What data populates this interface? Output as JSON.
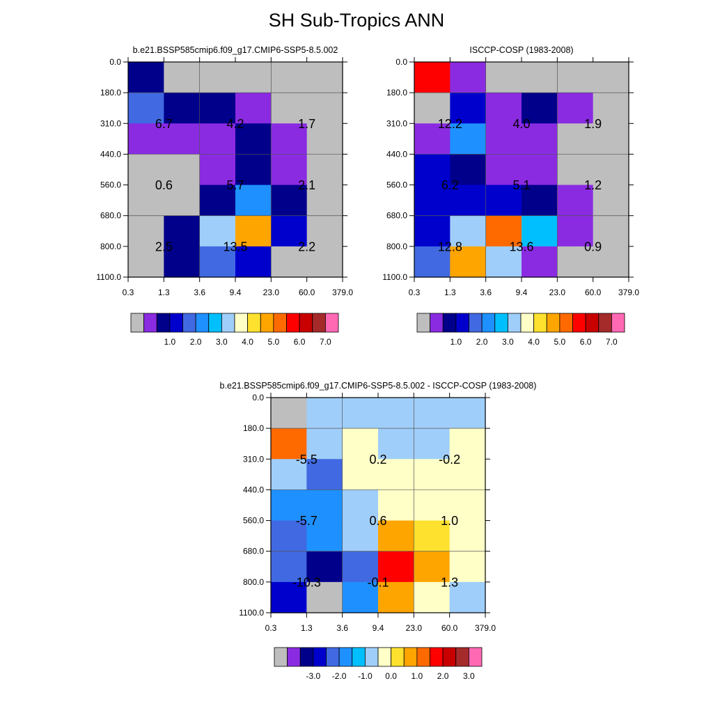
{
  "title": "SH Sub-Tropics ANN",
  "colors": {
    "gray": "#bebebe",
    "purple": "#8a2be2",
    "navy": "#00008b",
    "medblue": "#0000cd",
    "royal": "#4169e1",
    "dodger": "#1e90ff",
    "deepsky": "#00bfff",
    "lightsky": "#a0cefa",
    "cream": "#ffffc8",
    "gold": "#fde12e",
    "orange": "#ffa500",
    "darkorange": "#ff6a00",
    "red": "#ff0000",
    "crimson": "#c80000",
    "brown": "#a52a2a",
    "pink": "#ff69b4"
  },
  "chart_data": [
    {
      "type": "heatmap",
      "title": "b.e21.BSSP585cmip6.f09_g17.CMIP6-SSP5-8.5.002",
      "x_ticks": [
        "0.3",
        "1.3",
        "3.6",
        "9.4",
        "23.0",
        "60.0",
        "379.0"
      ],
      "y_ticks": [
        "0.0",
        "180.0",
        "310.0",
        "440.0",
        "560.0",
        "680.0",
        "800.0",
        "1100.0"
      ],
      "cells": [
        [
          "navy",
          "gray",
          "gray",
          "gray",
          "gray",
          "gray"
        ],
        [
          "royal",
          "navy",
          "navy",
          "purple",
          "gray",
          "gray"
        ],
        [
          "purple",
          "purple",
          "purple",
          "navy",
          "purple",
          "gray"
        ],
        [
          "gray",
          "gray",
          "purple",
          "navy",
          "purple",
          "gray"
        ],
        [
          "gray",
          "gray",
          "navy",
          "dodger",
          "navy",
          "gray"
        ],
        [
          "gray",
          "navy",
          "lightsky",
          "orange",
          "medblue",
          "gray"
        ],
        [
          "gray",
          "navy",
          "royal",
          "medblue",
          "gray",
          "gray"
        ]
      ],
      "annotations": [
        {
          "row": 1,
          "col": 0,
          "text": "6.7"
        },
        {
          "row": 1,
          "col": 2,
          "text": "4.2"
        },
        {
          "row": 1,
          "col": 4,
          "text": "1.7"
        },
        {
          "row": 3,
          "col": 0,
          "text": "0.6"
        },
        {
          "row": 3,
          "col": 2,
          "text": "5.7"
        },
        {
          "row": 3,
          "col": 4,
          "text": "2.1"
        },
        {
          "row": 5,
          "col": 0,
          "text": "2.5"
        },
        {
          "row": 5,
          "col": 2,
          "text": "13.5"
        },
        {
          "row": 5,
          "col": 4,
          "text": "2.2"
        }
      ],
      "colorbar": {
        "colors": [
          "gray",
          "purple",
          "navy",
          "medblue",
          "royal",
          "dodger",
          "deepsky",
          "lightsky",
          "cream",
          "gold",
          "orange",
          "darkorange",
          "red",
          "crimson",
          "brown",
          "pink"
        ],
        "labels": [
          "1.0",
          "2.0",
          "3.0",
          "4.0",
          "5.0",
          "6.0",
          "7.0"
        ]
      }
    },
    {
      "type": "heatmap",
      "title": "ISCCP-COSP (1983-2008)",
      "x_ticks": [
        "0.3",
        "1.3",
        "3.6",
        "9.4",
        "23.0",
        "60.0",
        "379.0"
      ],
      "y_ticks": [
        "0.0",
        "180.0",
        "310.0",
        "440.0",
        "560.0",
        "680.0",
        "800.0",
        "1100.0"
      ],
      "cells": [
        [
          "red",
          "purple",
          "gray",
          "gray",
          "gray",
          "gray"
        ],
        [
          "gray",
          "medblue",
          "purple",
          "navy",
          "purple",
          "gray"
        ],
        [
          "purple",
          "dodger",
          "purple",
          "purple",
          "gray",
          "gray"
        ],
        [
          "medblue",
          "navy",
          "purple",
          "purple",
          "gray",
          "gray"
        ],
        [
          "medblue",
          "medblue",
          "medblue",
          "navy",
          "purple",
          "gray"
        ],
        [
          "medblue",
          "lightsky",
          "darkorange",
          "deepsky",
          "purple",
          "gray"
        ],
        [
          "royal",
          "orange",
          "lightsky",
          "purple",
          "gray",
          "gray"
        ]
      ],
      "annotations": [
        {
          "row": 1,
          "col": 0,
          "text": "12.2"
        },
        {
          "row": 1,
          "col": 2,
          "text": "4.0"
        },
        {
          "row": 1,
          "col": 4,
          "text": "1.9"
        },
        {
          "row": 3,
          "col": 0,
          "text": "6.2"
        },
        {
          "row": 3,
          "col": 2,
          "text": "5.1"
        },
        {
          "row": 3,
          "col": 4,
          "text": "1.2"
        },
        {
          "row": 5,
          "col": 0,
          "text": "12.8"
        },
        {
          "row": 5,
          "col": 2,
          "text": "13.6"
        },
        {
          "row": 5,
          "col": 4,
          "text": "0.9"
        }
      ],
      "colorbar": {
        "colors": [
          "gray",
          "purple",
          "navy",
          "medblue",
          "royal",
          "dodger",
          "deepsky",
          "lightsky",
          "cream",
          "gold",
          "orange",
          "darkorange",
          "red",
          "crimson",
          "brown",
          "pink"
        ],
        "labels": [
          "1.0",
          "2.0",
          "3.0",
          "4.0",
          "5.0",
          "6.0",
          "7.0"
        ]
      }
    },
    {
      "type": "heatmap",
      "title": "b.e21.BSSP585cmip6.f09_g17.CMIP6-SSP5-8.5.002 - ISCCP-COSP (1983-2008)",
      "x_ticks": [
        "0.3",
        "1.3",
        "3.6",
        "9.4",
        "23.0",
        "60.0",
        "379.0"
      ],
      "y_ticks": [
        "0.0",
        "180.0",
        "310.0",
        "440.0",
        "560.0",
        "680.0",
        "800.0",
        "1100.0"
      ],
      "cells": [
        [
          "gray",
          "lightsky",
          "lightsky",
          "lightsky",
          "lightsky",
          "lightsky"
        ],
        [
          "darkorange",
          "lightsky",
          "cream",
          "lightsky",
          "lightsky",
          "cream"
        ],
        [
          "lightsky",
          "royal",
          "cream",
          "cream",
          "cream",
          "cream"
        ],
        [
          "dodger",
          "dodger",
          "lightsky",
          "cream",
          "cream",
          "cream"
        ],
        [
          "royal",
          "dodger",
          "lightsky",
          "orange",
          "gold",
          "cream"
        ],
        [
          "royal",
          "navy",
          "royal",
          "red",
          "orange",
          "cream"
        ],
        [
          "medblue",
          "gray",
          "dodger",
          "orange",
          "cream",
          "lightsky"
        ]
      ],
      "annotations": [
        {
          "row": 1,
          "col": 0,
          "text": "-5.5"
        },
        {
          "row": 1,
          "col": 2,
          "text": "0.2"
        },
        {
          "row": 1,
          "col": 4,
          "text": "-0.2"
        },
        {
          "row": 3,
          "col": 0,
          "text": "-5.7"
        },
        {
          "row": 3,
          "col": 2,
          "text": "0.6"
        },
        {
          "row": 3,
          "col": 4,
          "text": "1.0"
        },
        {
          "row": 5,
          "col": 0,
          "text": "-10.3"
        },
        {
          "row": 5,
          "col": 2,
          "text": "-0.1"
        },
        {
          "row": 5,
          "col": 4,
          "text": "1.3"
        }
      ],
      "colorbar": {
        "colors": [
          "gray",
          "purple",
          "navy",
          "medblue",
          "royal",
          "dodger",
          "deepsky",
          "lightsky",
          "cream",
          "gold",
          "orange",
          "darkorange",
          "red",
          "crimson",
          "brown",
          "pink"
        ],
        "labels": [
          "-3.0",
          "-2.0",
          "-1.0",
          "0.0",
          "1.0",
          "2.0",
          "3.0"
        ]
      }
    }
  ]
}
